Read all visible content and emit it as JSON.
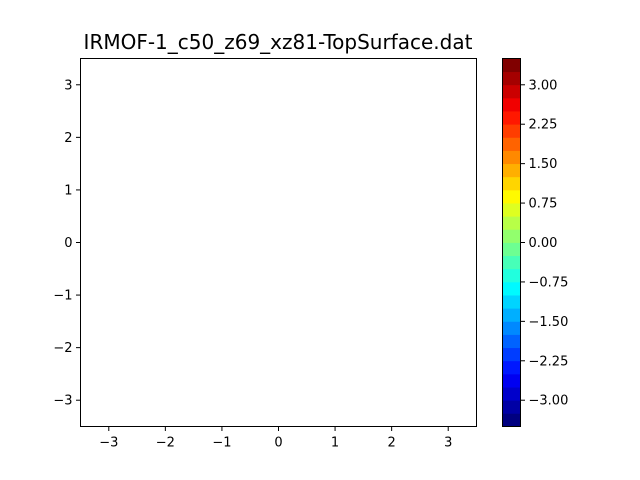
{
  "chart_data": {
    "type": "heatmap",
    "title": "IRMOF-1_c50_z69_xz81-TopSurface.dat",
    "xlim": [
      -3.5,
      3.5
    ],
    "ylim": [
      -3.5,
      3.5
    ],
    "x_ticks": [
      -3,
      -2,
      -1,
      0,
      1,
      2,
      3
    ],
    "y_ticks": [
      -3,
      -2,
      -1,
      0,
      1,
      2,
      3
    ],
    "x_tick_labels": [
      "−3",
      "−2",
      "−1",
      "0",
      "1",
      "2",
      "3"
    ],
    "y_tick_labels": [
      "−3",
      "−2",
      "−1",
      "0",
      "1",
      "2",
      "3"
    ],
    "grid": false,
    "values": [],
    "colorbar": {
      "colormap": "jet",
      "range": [
        -3.5,
        3.5
      ],
      "levels": [
        -3.5,
        -3.25,
        -3.0,
        -2.75,
        -2.5,
        -2.25,
        -2.0,
        -1.75,
        -1.5,
        -1.25,
        -1.0,
        -0.75,
        -0.5,
        -0.25,
        0.0,
        0.25,
        0.5,
        0.75,
        1.0,
        1.25,
        1.5,
        1.75,
        2.0,
        2.25,
        2.5,
        2.75,
        3.0,
        3.25,
        3.5
      ],
      "ticks": [
        -3.0,
        -2.25,
        -1.5,
        -0.75,
        0.0,
        0.75,
        1.5,
        2.25,
        3.0
      ],
      "tick_labels": [
        "−3.00",
        "−2.25",
        "−1.50",
        "−0.75",
        "0.00",
        "0.75",
        "1.50",
        "2.25",
        "3.00"
      ]
    }
  }
}
